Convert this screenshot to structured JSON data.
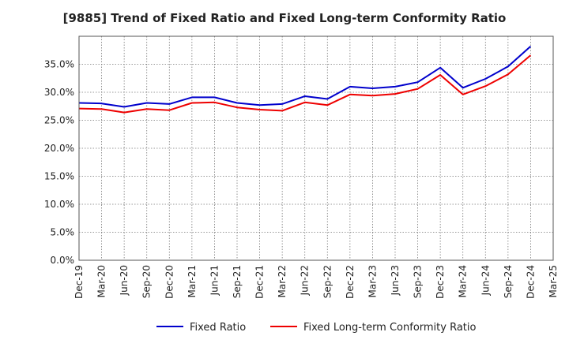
{
  "chart_data": {
    "type": "line",
    "title": "[9885]  Trend of Fixed Ratio and Fixed Long-term Conformity Ratio",
    "xlabel": "",
    "ylabel": "",
    "ylim": [
      0,
      40
    ],
    "y_ticks": [
      0,
      5,
      10,
      15,
      20,
      25,
      30,
      35
    ],
    "y_tick_labels": [
      "0.0%",
      "5.0%",
      "10.0%",
      "15.0%",
      "20.0%",
      "25.0%",
      "30.0%",
      "35.0%"
    ],
    "x_tick_labels": [
      "Dec-19",
      "Mar-20",
      "Jun-20",
      "Sep-20",
      "Dec-20",
      "Mar-21",
      "Jun-21",
      "Sep-21",
      "Dec-21",
      "Mar-22",
      "Jun-22",
      "Sep-22",
      "Dec-22",
      "Mar-23",
      "Jun-23",
      "Sep-23",
      "Dec-23",
      "Mar-24",
      "Jun-24",
      "Sep-24",
      "Dec-24",
      "Mar-25"
    ],
    "grid": true,
    "legend_position": "bottom",
    "series": [
      {
        "name": "Fixed Ratio",
        "color": "#0000cc",
        "values": [
          28.1,
          28.0,
          27.4,
          28.1,
          27.9,
          29.1,
          29.1,
          28.1,
          27.7,
          27.9,
          29.3,
          28.8,
          31.0,
          30.7,
          31.0,
          31.8,
          34.4,
          30.8,
          32.4,
          34.6,
          38.2,
          null
        ]
      },
      {
        "name": "Fixed Long-term Conformity Ratio",
        "color": "#ee0000",
        "values": [
          27.1,
          27.0,
          26.4,
          27.0,
          26.8,
          28.1,
          28.2,
          27.3,
          26.9,
          26.7,
          28.2,
          27.7,
          29.6,
          29.4,
          29.7,
          30.6,
          33.1,
          29.6,
          31.1,
          33.2,
          36.6,
          null
        ]
      }
    ]
  }
}
